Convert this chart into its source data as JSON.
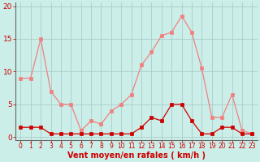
{
  "x": [
    0,
    1,
    2,
    3,
    4,
    5,
    6,
    7,
    8,
    9,
    10,
    11,
    12,
    13,
    14,
    15,
    16,
    17,
    18,
    19,
    20,
    21,
    22,
    23
  ],
  "y_rafales": [
    9,
    9,
    15,
    7,
    5,
    5,
    1,
    2.5,
    2,
    4,
    5,
    6.5,
    11,
    13,
    15.5,
    16,
    18.5,
    16,
    10.5,
    3,
    3,
    6.5,
    1,
    0.5
  ],
  "y_moyen": [
    1.5,
    1.5,
    1.5,
    0.5,
    0.5,
    0.5,
    0.5,
    0.5,
    0.5,
    0.5,
    0.5,
    0.5,
    1.5,
    3,
    2.5,
    5,
    5,
    2.5,
    0.5,
    0.5,
    1.5,
    1.5,
    0.5,
    0.5
  ],
  "color_rafales": "#f08080",
  "color_moyen": "#cc0000",
  "bg_color": "#cceee8",
  "grid_color": "#aacccc",
  "xlabel": "Vent moyen/en rafales ( km/h )",
  "yticks": [
    0,
    5,
    10,
    15,
    20
  ],
  "ylim": [
    -0.5,
    20.5
  ],
  "xlim": [
    -0.5,
    23.5
  ],
  "axis_color": "#888888",
  "label_color": "#cc0000",
  "xlabel_fontsize": 7,
  "tick_fontsize": 5.5,
  "ytick_fontsize": 6.5
}
